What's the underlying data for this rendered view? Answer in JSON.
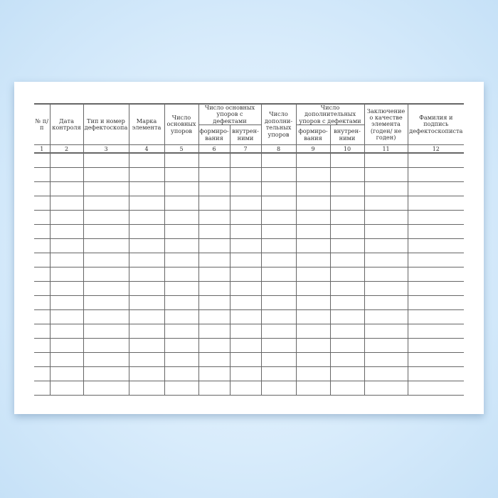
{
  "table": {
    "headers": {
      "col1": "№ п/п",
      "col2": "Дата контроля",
      "col3": "Тип и номер дефектоскопа",
      "col4": "Марка элемента",
      "col5": "Число основных упоров",
      "group1": "Число основных упоров с дефектами",
      "col6": "формиро-вания",
      "col7": "внутрен-ними",
      "col8": "Число дополни-тельных упоров",
      "group2": "Число дополнительных упоров с дефектами",
      "col9": "формиро-вания",
      "col10": "внутрен-ними",
      "col11": "Заключение о качестве элемента (годен/ не годен)",
      "col12": "Фамилия и подпись дефектоскописта"
    },
    "column_numbers": [
      "1",
      "2",
      "3",
      "4",
      "5",
      "6",
      "7",
      "8",
      "9",
      "10",
      "11",
      "12"
    ],
    "empty_row_count": 17
  }
}
